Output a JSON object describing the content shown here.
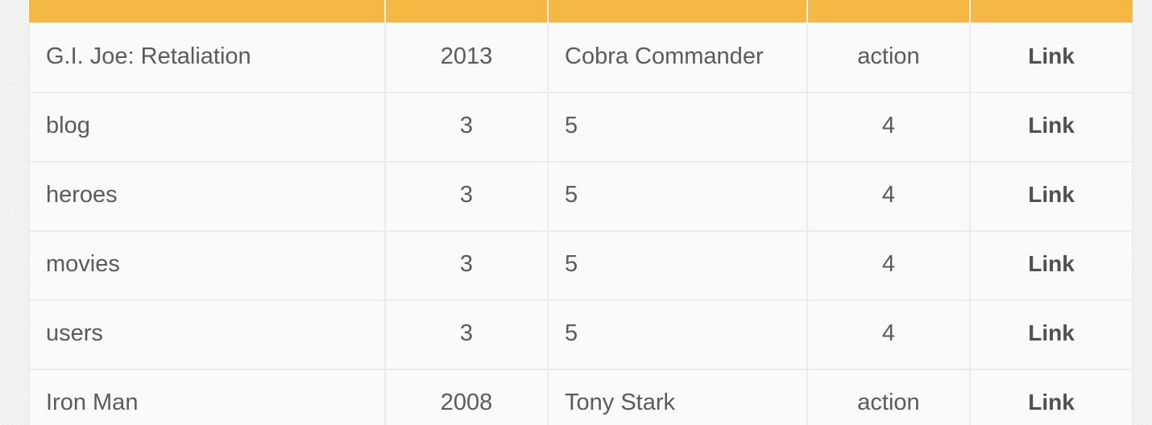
{
  "table": {
    "rows": [
      {
        "name": "G.I. Joe: Retaliation",
        "year": "2013",
        "character": "Cobra Commander",
        "genre": "action",
        "link": "Link"
      },
      {
        "name": "blog",
        "year": "3",
        "character": "5",
        "genre": "4",
        "link": "Link"
      },
      {
        "name": "heroes",
        "year": "3",
        "character": "5",
        "genre": "4",
        "link": "Link"
      },
      {
        "name": "movies",
        "year": "3",
        "character": "5",
        "genre": "4",
        "link": "Link"
      },
      {
        "name": "users",
        "year": "3",
        "character": "5",
        "genre": "4",
        "link": "Link"
      },
      {
        "name": "Iron Man",
        "year": "2008",
        "character": "Tony Stark",
        "genre": "action",
        "link": "Link"
      }
    ]
  },
  "colors": {
    "header": "#f4b942",
    "text": "#5b5b5b",
    "border": "#ececec"
  }
}
